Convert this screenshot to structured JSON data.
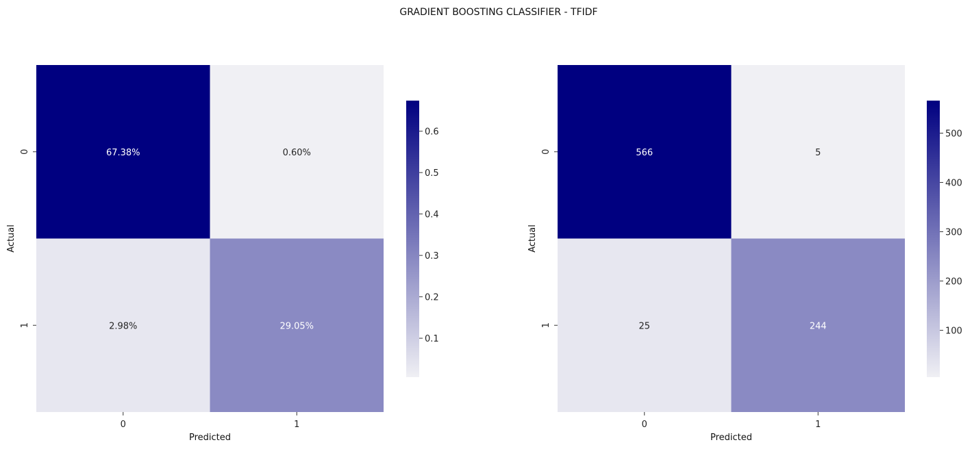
{
  "figure": {
    "title": "GRADIENT BOOSTING CLASSIFIER - TFIDF"
  },
  "chart_data": [
    {
      "type": "heatmap",
      "title": "",
      "xlabel": "Predicted",
      "ylabel": "Actual",
      "x_categories": [
        "0",
        "1"
      ],
      "y_categories": [
        "0",
        "1"
      ],
      "values": [
        [
          0.6738,
          0.006
        ],
        [
          0.0298,
          0.2905
        ]
      ],
      "annotations": [
        [
          "67.38%",
          "0.60%"
        ],
        [
          "2.98%",
          "29.05%"
        ]
      ],
      "colorbar": {
        "range": [
          0.006,
          0.6738
        ],
        "ticks": [
          "0.1",
          "0.2",
          "0.3",
          "0.4",
          "0.5",
          "0.6"
        ],
        "tick_values": [
          0.1,
          0.2,
          0.3,
          0.4,
          0.5,
          0.6
        ]
      },
      "colors": {
        "low": "#f0f0f4",
        "high": "#000080"
      }
    },
    {
      "type": "heatmap",
      "title": "",
      "xlabel": "Predicted",
      "ylabel": "Actual",
      "x_categories": [
        "0",
        "1"
      ],
      "y_categories": [
        "0",
        "1"
      ],
      "values": [
        [
          566,
          5
        ],
        [
          25,
          244
        ]
      ],
      "annotations": [
        [
          "566",
          "5"
        ],
        [
          "25",
          "244"
        ]
      ],
      "colorbar": {
        "range": [
          5,
          566
        ],
        "ticks": [
          "100",
          "200",
          "300",
          "400",
          "500"
        ],
        "tick_values": [
          100,
          200,
          300,
          400,
          500
        ]
      },
      "colors": {
        "low": "#f0f0f4",
        "high": "#000080"
      }
    }
  ]
}
